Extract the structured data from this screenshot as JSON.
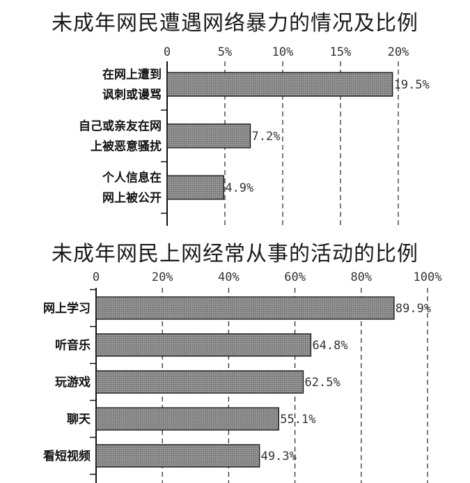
{
  "chart_data": [
    {
      "type": "bar",
      "orientation": "horizontal",
      "title": "未成年网民遭遇网络暴力的情况及比例",
      "categories": [
        "在网上遭到讽刺或谩骂",
        "自己或亲友在网上被恶意骚扰",
        "个人信息在网上被公开"
      ],
      "category_lines": [
        [
          "在网上遭到",
          "讽刺或谩骂"
        ],
        [
          "自己或亲友在网",
          "上被恶意骚扰"
        ],
        [
          "个人信息在",
          "网上被公开"
        ]
      ],
      "values": [
        19.5,
        7.2,
        4.9
      ],
      "value_labels": [
        "19.5%",
        "7.2%",
        "4.9%"
      ],
      "xlim": [
        0,
        20
      ],
      "ticks": [
        0,
        5,
        10,
        15,
        20
      ],
      "tick_labels": [
        "0",
        "5%",
        "10%",
        "15%",
        "20%"
      ],
      "xlabel": "",
      "ylabel": "",
      "axis_position": "top",
      "grid": "vertical dashed",
      "bar_color": "#8a8a8a"
    },
    {
      "type": "bar",
      "orientation": "horizontal",
      "title": "未成年网民上网经常从事的活动的比例",
      "categories": [
        "网上学习",
        "听音乐",
        "玩游戏",
        "聊天",
        "看短视频"
      ],
      "category_lines": [
        [
          "网上学习"
        ],
        [
          "听音乐"
        ],
        [
          "玩游戏"
        ],
        [
          "聊天"
        ],
        [
          "看短视频"
        ]
      ],
      "values": [
        89.9,
        64.8,
        62.5,
        55.1,
        49.3
      ],
      "value_labels": [
        "89.9%",
        "64.8%",
        "62.5%",
        "55.1%",
        "49.3%"
      ],
      "xlim": [
        0,
        100
      ],
      "ticks": [
        0,
        20,
        40,
        60,
        80,
        100
      ],
      "tick_labels": [
        "0",
        "20%",
        "40%",
        "60%",
        "80%",
        "100%"
      ],
      "xlabel": "",
      "ylabel": "",
      "axis_position": "top",
      "grid": "vertical dashed",
      "bar_color": "#8a8a8a"
    }
  ]
}
